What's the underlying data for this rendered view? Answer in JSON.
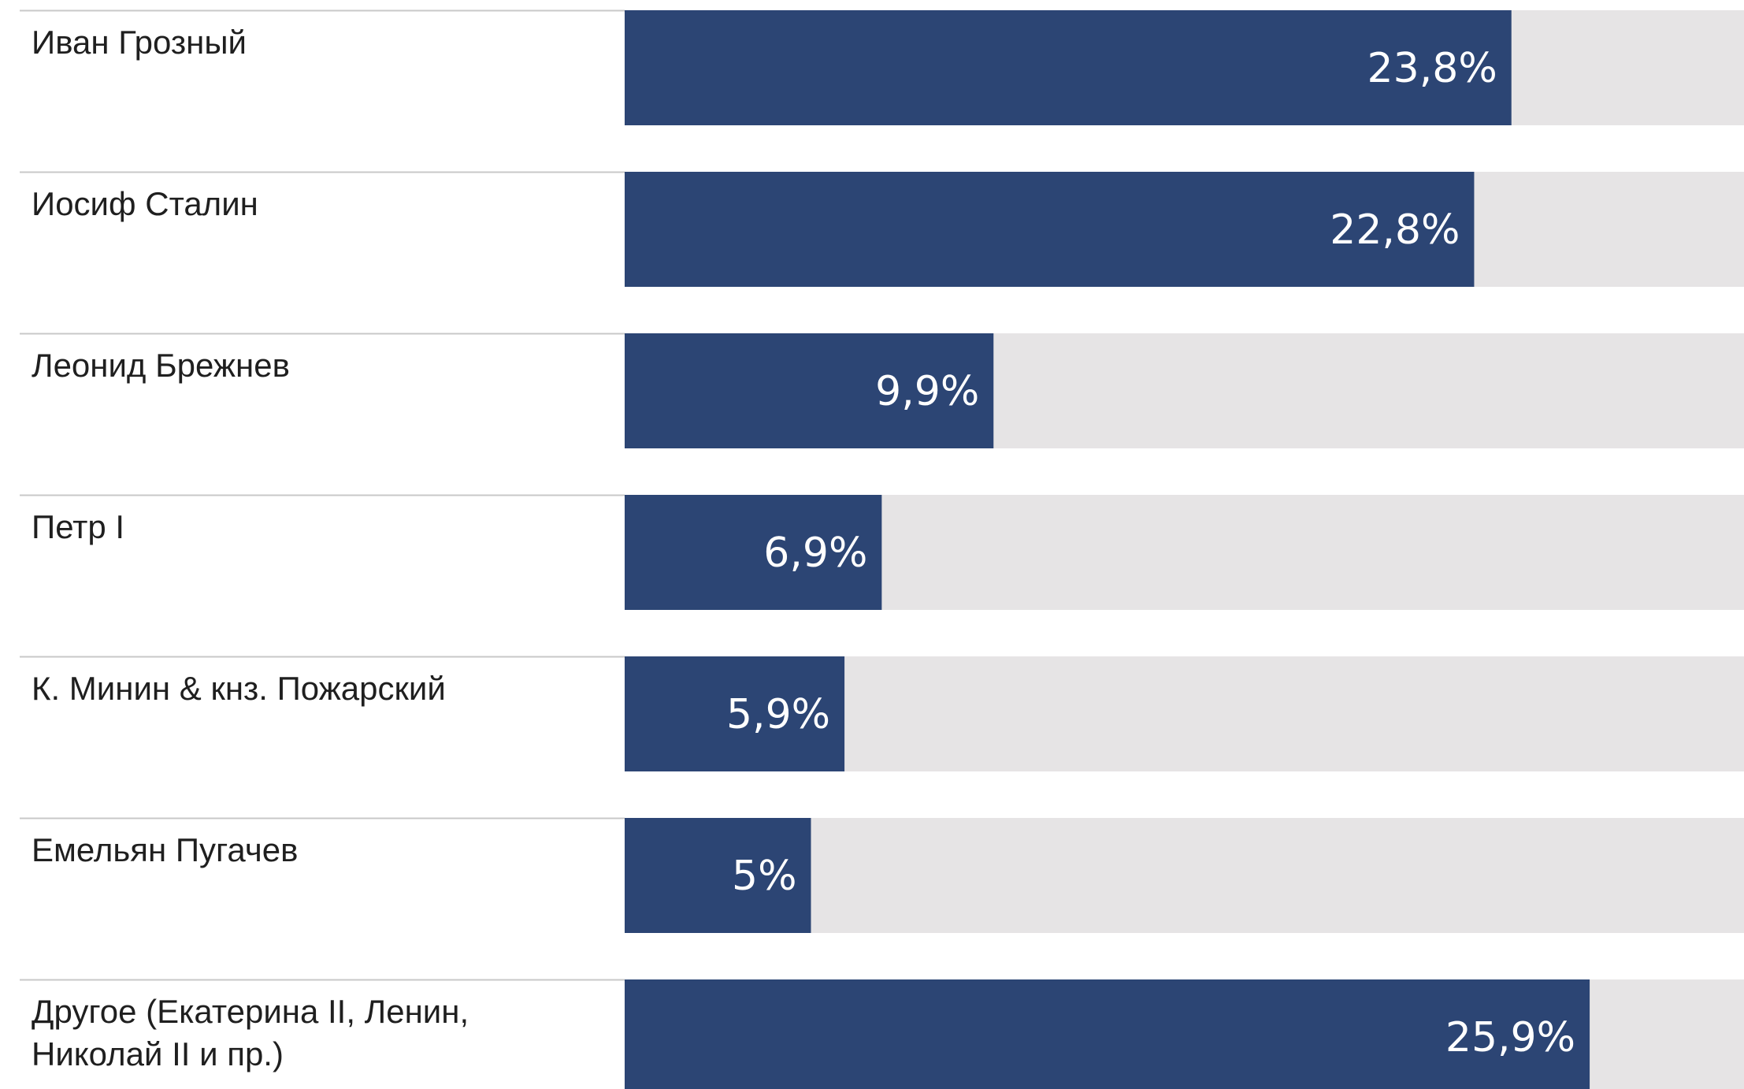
{
  "chart_data": {
    "type": "bar",
    "orientation": "horizontal",
    "categories": [
      "Иван Грозный",
      "Иосиф Сталин",
      "Леонид Брежнев",
      "Петр I",
      "К. Минин & кнз. Пожарский",
      "Емельян Пугачев",
      "Другое (Екатерина II, Ленин, Николай II и пр.)"
    ],
    "category_lines": [
      [
        "Иван Грозный"
      ],
      [
        "Иосиф Сталин"
      ],
      [
        "Леонид Брежнев"
      ],
      [
        "Петр I"
      ],
      [
        "К. Минин & кнз. Пожарский"
      ],
      [
        "Емельян Пугачев"
      ],
      [
        "Другое (Екатерина II, Ленин,",
        "Николай II и пр.)"
      ]
    ],
    "values": [
      23.8,
      22.8,
      9.9,
      6.9,
      5.9,
      5,
      25.9
    ],
    "value_labels": [
      "23,8%",
      "22,8%",
      "9,9%",
      "6,9%",
      "5,9%",
      "5%",
      "25,9%"
    ],
    "xlim": [
      0,
      50
    ],
    "title": "",
    "xlabel": "",
    "ylabel": "",
    "grid": false,
    "legend": "none",
    "colors": {
      "bar": "#2c4574",
      "track": "#e6e4e5",
      "separator": "#c8c8c8",
      "label": "#1f1f1f",
      "value_label": "#ffffff"
    }
  }
}
